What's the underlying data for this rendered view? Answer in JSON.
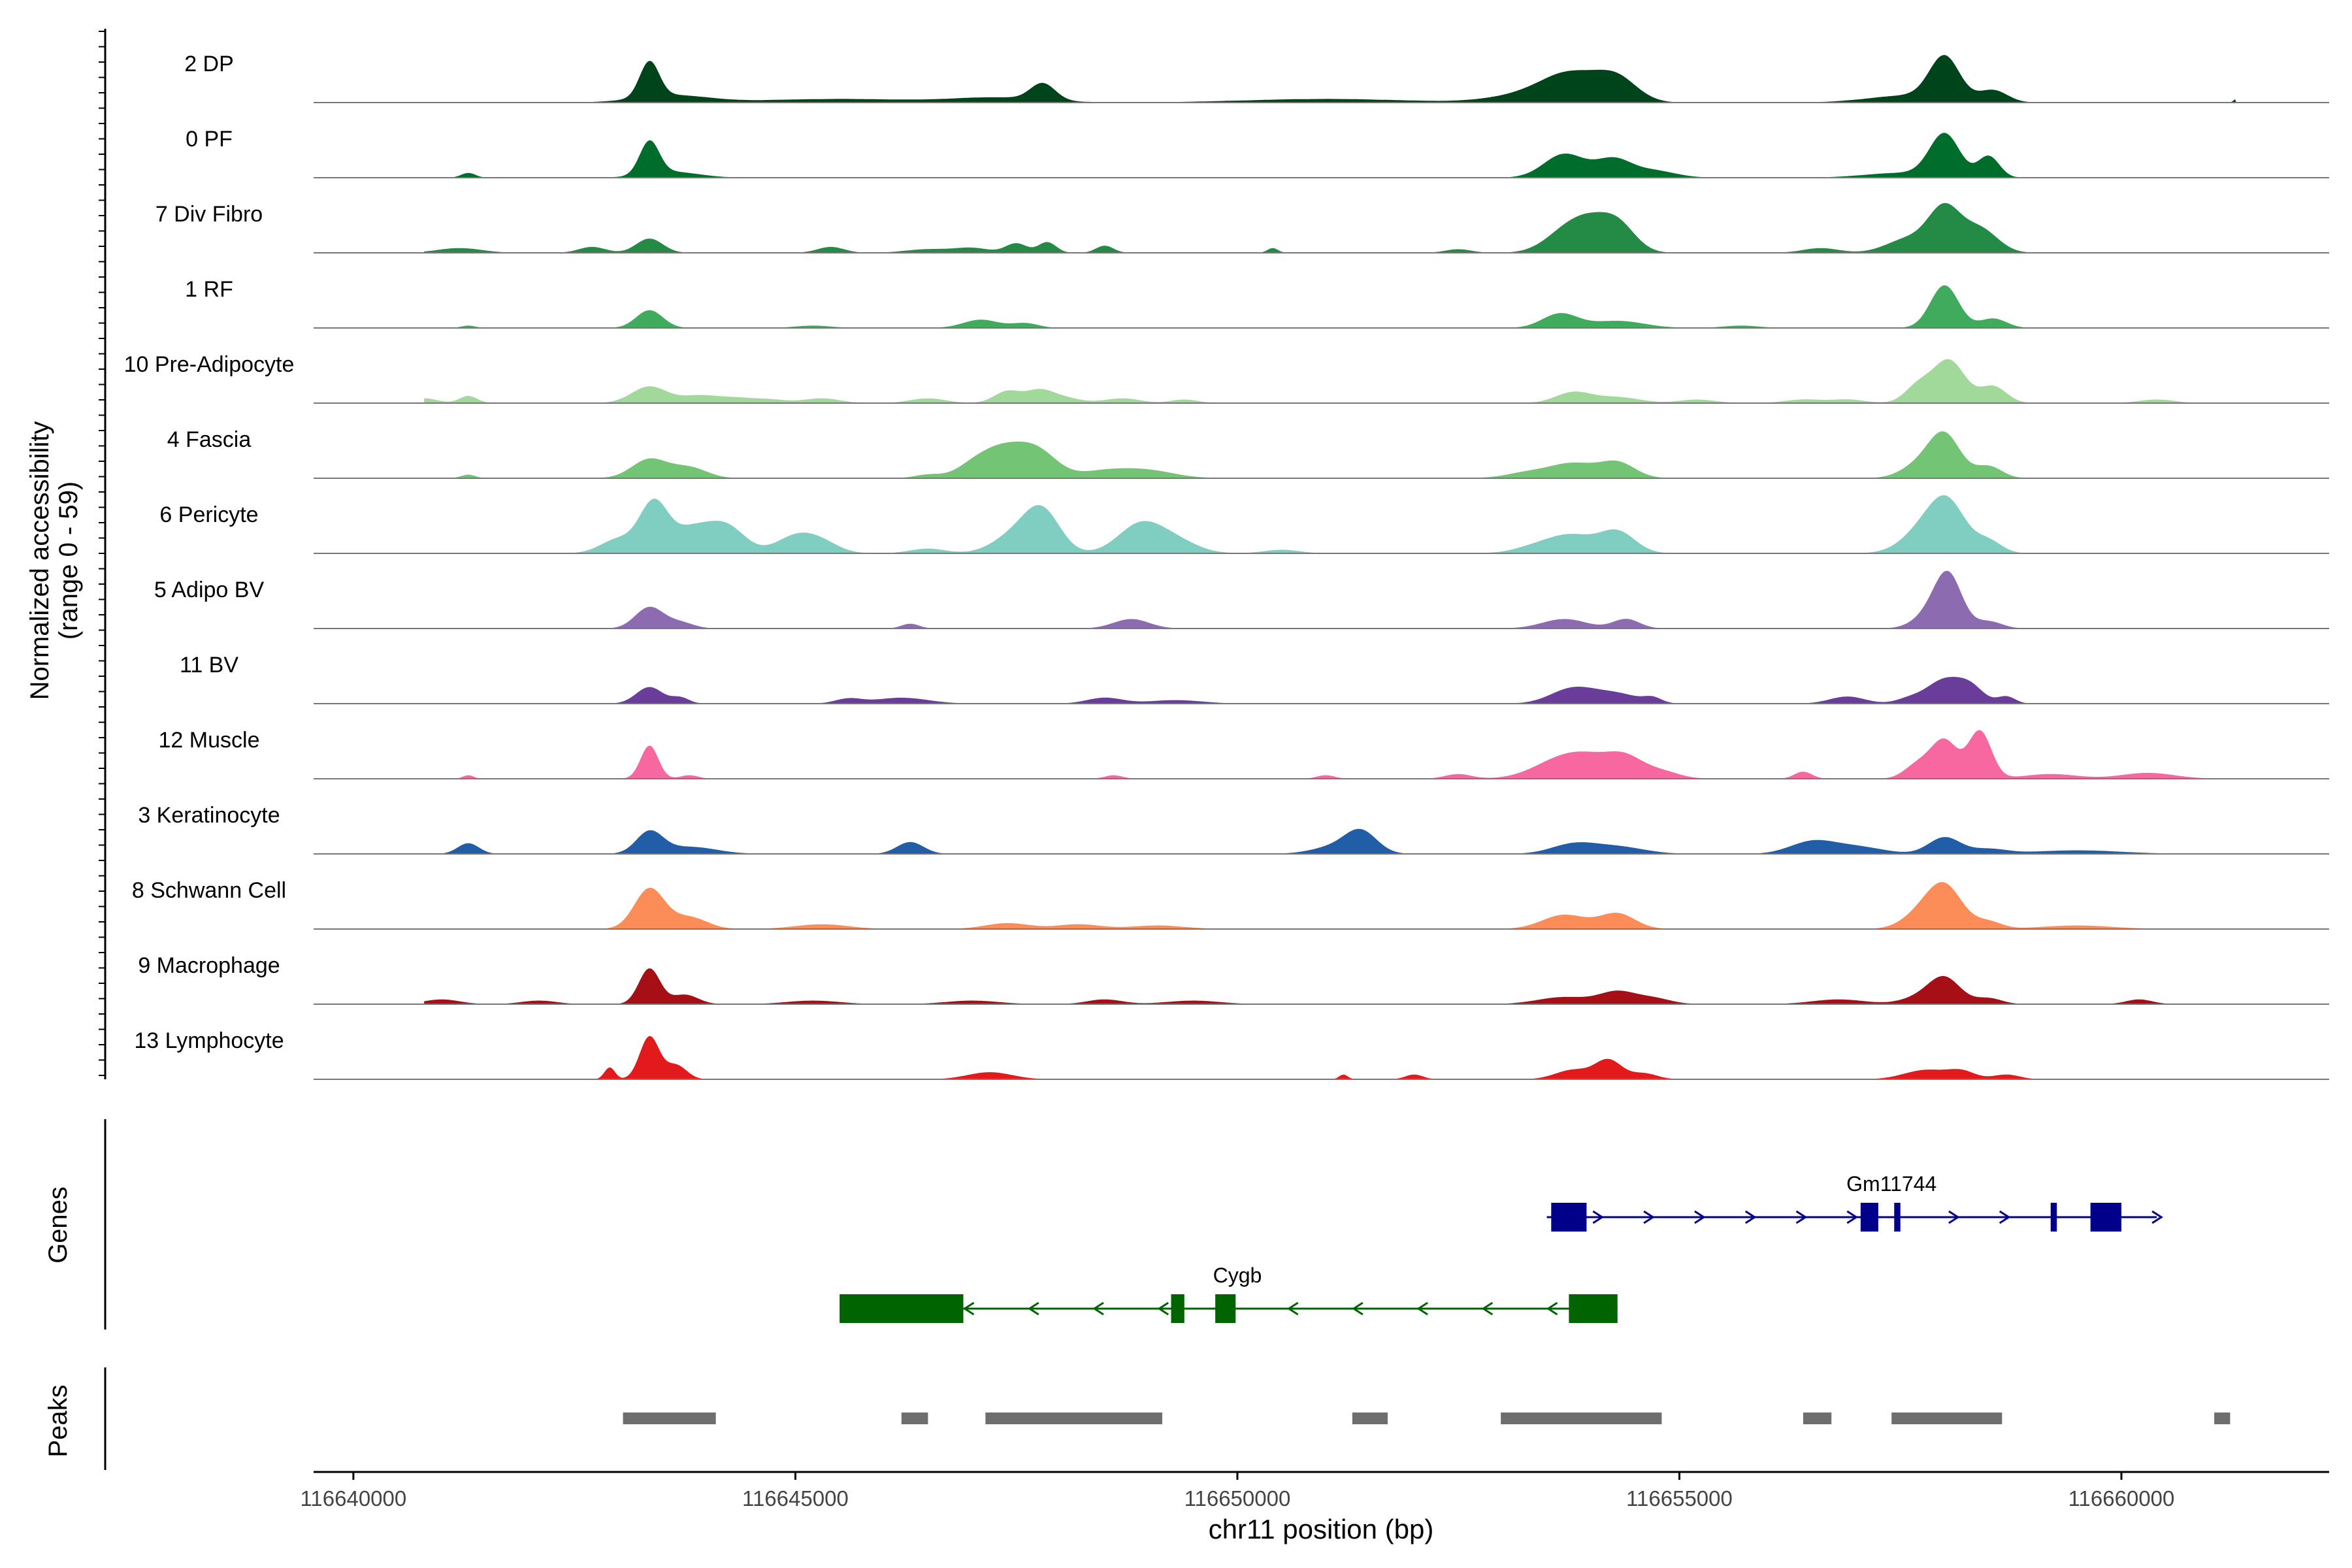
{
  "chart_data": {
    "type": "area",
    "title": "",
    "y_axis_label": [
      "Normalized accessibility",
      "(range 0 - 59)"
    ],
    "ylim": [
      0,
      59
    ],
    "x_axis_label": "chr11 position (bp)",
    "xlim": [
      116639550,
      116662350
    ],
    "x_ticks": [
      116640000,
      116645000,
      116650000,
      116655000,
      116660000
    ],
    "x_tick_labels": [
      "116640000",
      "116645000",
      "116650000",
      "116655000",
      "116660000"
    ],
    "tracks": [
      {
        "name": "2 DP",
        "color": "#00441b",
        "background": 0.1,
        "peaks": [
          [
            116643350,
            30,
            110
          ],
          [
            116643600,
            6,
            400
          ],
          [
            116647800,
            14,
            140
          ],
          [
            116647300,
            4,
            500
          ],
          [
            116645500,
            3,
            900
          ],
          [
            116653800,
            20,
            320
          ],
          [
            116654300,
            18,
            230
          ],
          [
            116653400,
            8,
            450
          ],
          [
            116658000,
            36,
            170
          ],
          [
            116658550,
            10,
            160
          ],
          [
            116657600,
            6,
            450
          ],
          [
            116651000,
            3,
            900
          ],
          [
            116661300,
            3,
            30
          ]
        ]
      },
      {
        "name": "0 PF",
        "color": "#006d2c",
        "background": 0.06,
        "peaks": [
          [
            116643350,
            28,
            110
          ],
          [
            116643600,
            5,
            300
          ],
          [
            116653700,
            20,
            230
          ],
          [
            116654250,
            15,
            200
          ],
          [
            116654700,
            6,
            250
          ],
          [
            116658000,
            36,
            170
          ],
          [
            116658500,
            18,
            120
          ],
          [
            116657500,
            4,
            400
          ],
          [
            116641300,
            4,
            80
          ]
        ]
      },
      {
        "name": "7 Div Fibro",
        "color": "#238b45",
        "background": 0.05,
        "peaks": [
          [
            116643350,
            12,
            150
          ],
          [
            116641200,
            4,
            250
          ],
          [
            116642700,
            5,
            150
          ],
          [
            116645400,
            5,
            150
          ],
          [
            116647500,
            8,
            120
          ],
          [
            116647850,
            9,
            100
          ],
          [
            116648500,
            6,
            100
          ],
          [
            116647000,
            4,
            200
          ],
          [
            116646500,
            3,
            250
          ],
          [
            116650400,
            4,
            60
          ],
          [
            116652500,
            3,
            150
          ],
          [
            116653750,
            20,
            250
          ],
          [
            116654300,
            24,
            200
          ],
          [
            116654000,
            14,
            200
          ],
          [
            116656600,
            4,
            200
          ],
          [
            116658000,
            36,
            180
          ],
          [
            116658400,
            20,
            200
          ],
          [
            116657600,
            12,
            250
          ]
        ]
      },
      {
        "name": "1 RF",
        "color": "#41ab5d",
        "background": 0.02,
        "peaks": [
          [
            116643350,
            15,
            150
          ],
          [
            116647100,
            7,
            200
          ],
          [
            116647600,
            4,
            150
          ],
          [
            116645200,
            2,
            200
          ],
          [
            116653650,
            12,
            200
          ],
          [
            116654300,
            6,
            300
          ],
          [
            116655700,
            2,
            200
          ],
          [
            116658000,
            36,
            160
          ],
          [
            116658550,
            8,
            150
          ],
          [
            116641300,
            2,
            80
          ]
        ]
      },
      {
        "name": "10 Pre-Adipocyte",
        "color": "#a1d99b",
        "background": 0.06,
        "peaks": [
          [
            116643350,
            14,
            200
          ],
          [
            116640800,
            4,
            150
          ],
          [
            116641300,
            6,
            100
          ],
          [
            116643900,
            6,
            200
          ],
          [
            116644300,
            4,
            200
          ],
          [
            116644700,
            3,
            200
          ],
          [
            116645300,
            4,
            200
          ],
          [
            116646500,
            4,
            200
          ],
          [
            116647400,
            10,
            150
          ],
          [
            116647750,
            9,
            150
          ],
          [
            116648000,
            5,
            200
          ],
          [
            116648700,
            4,
            200
          ],
          [
            116649400,
            3,
            150
          ],
          [
            116653800,
            9,
            200
          ],
          [
            116654300,
            5,
            250
          ],
          [
            116655200,
            3,
            200
          ],
          [
            116656400,
            3,
            200
          ],
          [
            116656900,
            3,
            200
          ],
          [
            116657700,
            14,
            150
          ],
          [
            116658050,
            36,
            180
          ],
          [
            116658550,
            14,
            150
          ],
          [
            116660400,
            3,
            200
          ]
        ]
      },
      {
        "name": "4 Fascia",
        "color": "#74c476",
        "background": 0.04,
        "peaks": [
          [
            116643350,
            16,
            200
          ],
          [
            116643800,
            9,
            200
          ],
          [
            116641300,
            3,
            80
          ],
          [
            116647350,
            24,
            250
          ],
          [
            116647750,
            20,
            220
          ],
          [
            116647000,
            8,
            200
          ],
          [
            116648500,
            6,
            300
          ],
          [
            116649000,
            6,
            300
          ],
          [
            116646500,
            3,
            150
          ],
          [
            116653800,
            12,
            250
          ],
          [
            116654300,
            13,
            200
          ],
          [
            116653300,
            5,
            250
          ],
          [
            116657700,
            10,
            200
          ],
          [
            116658000,
            36,
            180
          ],
          [
            116658500,
            10,
            150
          ]
        ]
      },
      {
        "name": "6 Pericyte",
        "color": "#80cdc1",
        "background": 0.06,
        "peaks": [
          [
            116643400,
            42,
            160
          ],
          [
            116643800,
            18,
            200
          ],
          [
            116644200,
            24,
            220
          ],
          [
            116643000,
            12,
            200
          ],
          [
            116645000,
            14,
            220
          ],
          [
            116645300,
            8,
            200
          ],
          [
            116647800,
            32,
            200
          ],
          [
            116647500,
            16,
            250
          ],
          [
            116648900,
            24,
            250
          ],
          [
            116649300,
            10,
            250
          ],
          [
            116646500,
            4,
            200
          ],
          [
            116653800,
            14,
            250
          ],
          [
            116654300,
            18,
            200
          ],
          [
            116653400,
            6,
            250
          ],
          [
            116657800,
            22,
            250
          ],
          [
            116658050,
            34,
            200
          ],
          [
            116658500,
            10,
            150
          ],
          [
            116650500,
            3,
            200
          ]
        ]
      },
      {
        "name": "5 Adipo BV",
        "color": "#8c6bb1",
        "background": 0.02,
        "peaks": [
          [
            116643350,
            18,
            160
          ],
          [
            116643700,
            5,
            150
          ],
          [
            116646300,
            4,
            100
          ],
          [
            116648800,
            8,
            200
          ],
          [
            116653700,
            8,
            250
          ],
          [
            116654400,
            8,
            150
          ],
          [
            116657900,
            16,
            200
          ],
          [
            116658050,
            36,
            150
          ],
          [
            116658500,
            6,
            150
          ]
        ]
      },
      {
        "name": "11 BV",
        "color": "#6a3d9a",
        "background": 0.0,
        "peaks": [
          [
            116643350,
            14,
            150
          ],
          [
            116643700,
            5,
            100
          ],
          [
            116645600,
            4,
            150
          ],
          [
            116646200,
            5,
            300
          ],
          [
            116648500,
            5,
            200
          ],
          [
            116649300,
            3,
            300
          ],
          [
            116653800,
            13,
            250
          ],
          [
            116654300,
            8,
            250
          ],
          [
            116654700,
            4,
            100
          ],
          [
            116656900,
            6,
            200
          ],
          [
            116657600,
            4,
            150
          ],
          [
            116658000,
            20,
            200
          ],
          [
            116658300,
            12,
            150
          ],
          [
            116658700,
            6,
            100
          ]
        ]
      },
      {
        "name": "12 Muscle",
        "color": "#f768a1",
        "background": 0.0,
        "peaks": [
          [
            116643350,
            28,
            100
          ],
          [
            116643800,
            3,
            100
          ],
          [
            116641300,
            3,
            60
          ],
          [
            116648600,
            3,
            100
          ],
          [
            116651000,
            3,
            100
          ],
          [
            116652500,
            4,
            150
          ],
          [
            116653600,
            12,
            300
          ],
          [
            116654000,
            16,
            300
          ],
          [
            116654400,
            14,
            200
          ],
          [
            116654800,
            6,
            200
          ],
          [
            116656400,
            6,
            100
          ],
          [
            116657700,
            12,
            150
          ],
          [
            116658000,
            32,
            150
          ],
          [
            116658400,
            40,
            130
          ],
          [
            116659200,
            4,
            300
          ],
          [
            116660300,
            5,
            300
          ]
        ]
      },
      {
        "name": "3 Keratinocyte",
        "color": "#225ea8",
        "background": 0.05,
        "peaks": [
          [
            116641300,
            9,
            120
          ],
          [
            116643350,
            18,
            150
          ],
          [
            116643800,
            6,
            300
          ],
          [
            116646300,
            10,
            150
          ],
          [
            116651400,
            18,
            180
          ],
          [
            116651100,
            6,
            250
          ],
          [
            116653800,
            8,
            250
          ],
          [
            116654300,
            6,
            300
          ],
          [
            116656500,
            10,
            250
          ],
          [
            116657000,
            6,
            300
          ],
          [
            116658000,
            14,
            180
          ],
          [
            116658500,
            4,
            200
          ],
          [
            116659500,
            3,
            500
          ]
        ]
      },
      {
        "name": "8 Schwann Cell",
        "color": "#fc8d59",
        "background": 0.05,
        "peaks": [
          [
            116643350,
            34,
            170
          ],
          [
            116643800,
            10,
            200
          ],
          [
            116645300,
            4,
            300
          ],
          [
            116647400,
            5,
            250
          ],
          [
            116648200,
            4,
            250
          ],
          [
            116649100,
            3,
            300
          ],
          [
            116653700,
            12,
            250
          ],
          [
            116654300,
            13,
            200
          ],
          [
            116657700,
            10,
            200
          ],
          [
            116658000,
            36,
            200
          ],
          [
            116658500,
            6,
            150
          ],
          [
            116659500,
            3,
            400
          ]
        ]
      },
      {
        "name": "9 Macrophage",
        "color": "#a50f15",
        "background": 0.03,
        "peaks": [
          [
            116643350,
            30,
            120
          ],
          [
            116643750,
            8,
            150
          ],
          [
            116641000,
            4,
            200
          ],
          [
            116642100,
            3,
            200
          ],
          [
            116645200,
            3,
            300
          ],
          [
            116647000,
            3,
            300
          ],
          [
            116648500,
            4,
            200
          ],
          [
            116649500,
            3,
            300
          ],
          [
            116653700,
            6,
            300
          ],
          [
            116654300,
            10,
            200
          ],
          [
            116654700,
            5,
            200
          ],
          [
            116656800,
            4,
            300
          ],
          [
            116657700,
            5,
            200
          ],
          [
            116658000,
            22,
            180
          ],
          [
            116658500,
            5,
            150
          ],
          [
            116660200,
            4,
            150
          ]
        ]
      },
      {
        "name": "13 Lymphocyte",
        "color": "#e31a1c",
        "background": 0.0,
        "peaks": [
          [
            116643350,
            36,
            110
          ],
          [
            116643650,
            12,
            120
          ],
          [
            116642900,
            10,
            60
          ],
          [
            116647200,
            6,
            250
          ],
          [
            116651200,
            4,
            50
          ],
          [
            116652000,
            4,
            100
          ],
          [
            116653800,
            8,
            200
          ],
          [
            116654200,
            16,
            150
          ],
          [
            116654600,
            5,
            150
          ],
          [
            116657800,
            8,
            250
          ],
          [
            116658200,
            6,
            150
          ],
          [
            116658700,
            4,
            150
          ]
        ]
      }
    ],
    "genes": [
      {
        "name": "Gm11744",
        "strand": "+",
        "color": "#00008b",
        "start": 116653500,
        "end": 116660400,
        "exons": [
          [
            116653550,
            116653950
          ],
          [
            116657050,
            116657250
          ],
          [
            116657430,
            116657500
          ],
          [
            116659200,
            116659270
          ],
          [
            116659650,
            116660000
          ]
        ]
      },
      {
        "name": "Cygb",
        "strand": "-",
        "color": "#006400",
        "start": 116645500,
        "end": 116654300,
        "exons": [
          [
            116645500,
            116646900
          ],
          [
            116649250,
            116649400
          ],
          [
            116649750,
            116649980
          ],
          [
            116653750,
            116654300
          ]
        ]
      }
    ],
    "peaks_track": {
      "color": "#6e6e6e",
      "regions": [
        [
          116643050,
          116644100
        ],
        [
          116646200,
          116646500
        ],
        [
          116647150,
          116649150
        ],
        [
          116651300,
          116651700
        ],
        [
          116652980,
          116654800
        ],
        [
          116656400,
          116656720
        ],
        [
          116657400,
          116658650
        ],
        [
          116661050,
          116661230
        ]
      ]
    },
    "section_labels": {
      "genes": "Genes",
      "peaks": "Peaks"
    }
  }
}
